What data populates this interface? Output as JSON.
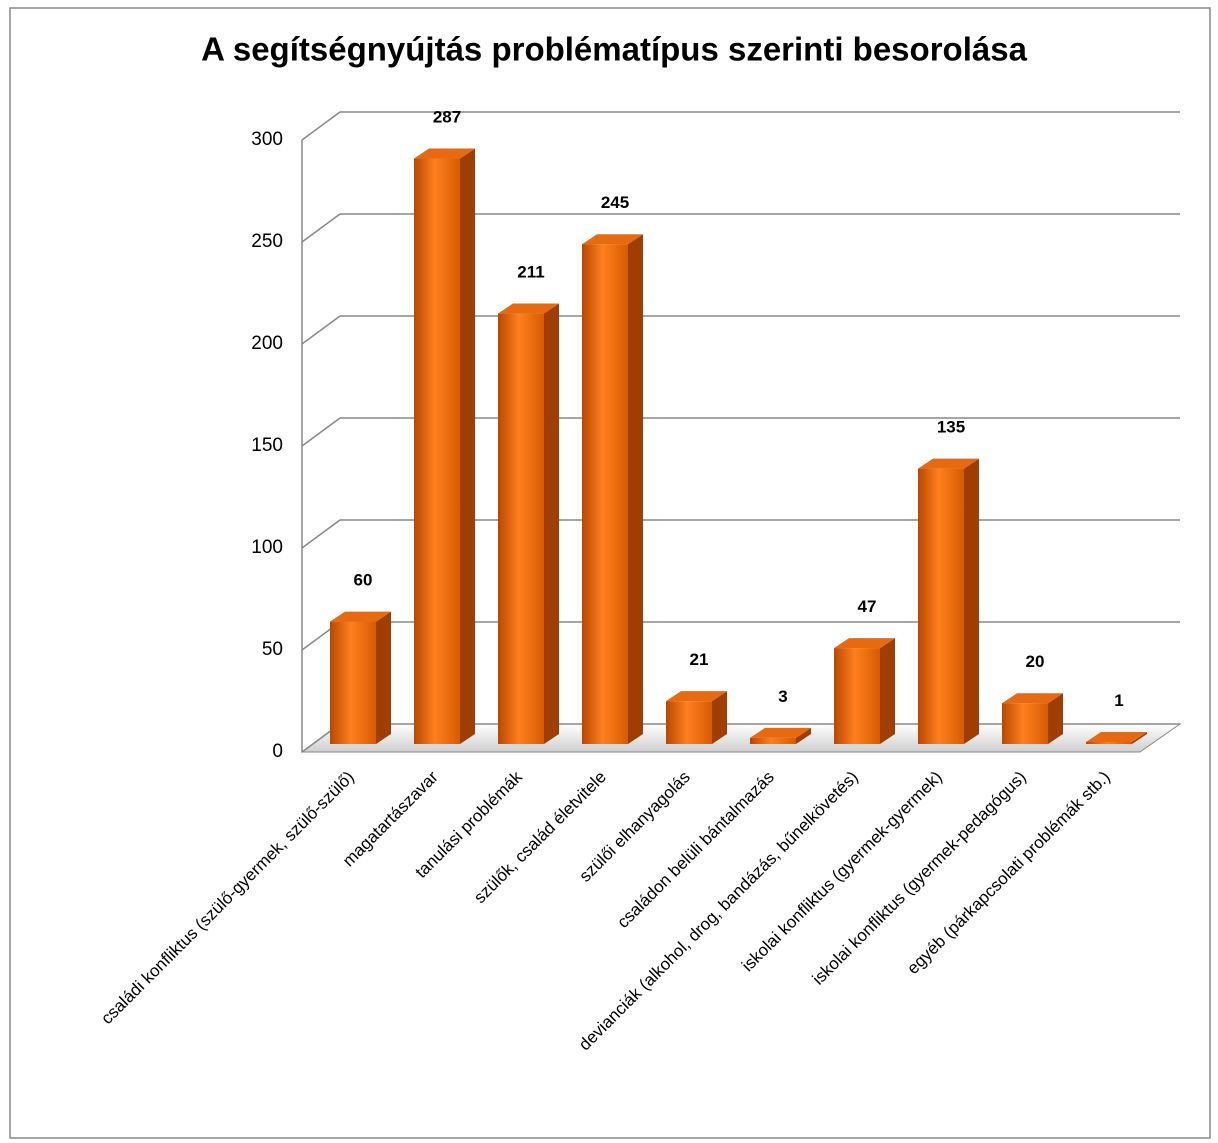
{
  "chart_data": {
    "type": "bar",
    "title": "A segítségnyújtás problématípus szerinti besorolása",
    "categories": [
      "családi konfliktus (szülő-gyermek, szülő-szülő)",
      "magatartászavar",
      "tanulási problémák",
      "szülők, család életvitele",
      "szülői elhanyagolás",
      "családon belüli bántalmazás",
      "devianciák (alkohol, drog, bandázás, bűnelkövetés)",
      "iskolai konfliktus (gyermek-gyermek)",
      "iskolai konfliktus (gyermek-pedagógus)",
      "egyéb (párkapcsolati problémák stb.)"
    ],
    "values": [
      60,
      287,
      211,
      245,
      21,
      3,
      47,
      135,
      20,
      1
    ],
    "color": "#e86a10",
    "ylim": [
      0,
      300
    ],
    "yticks": [
      0,
      50,
      100,
      150,
      200,
      250,
      300
    ],
    "grid": true
  }
}
